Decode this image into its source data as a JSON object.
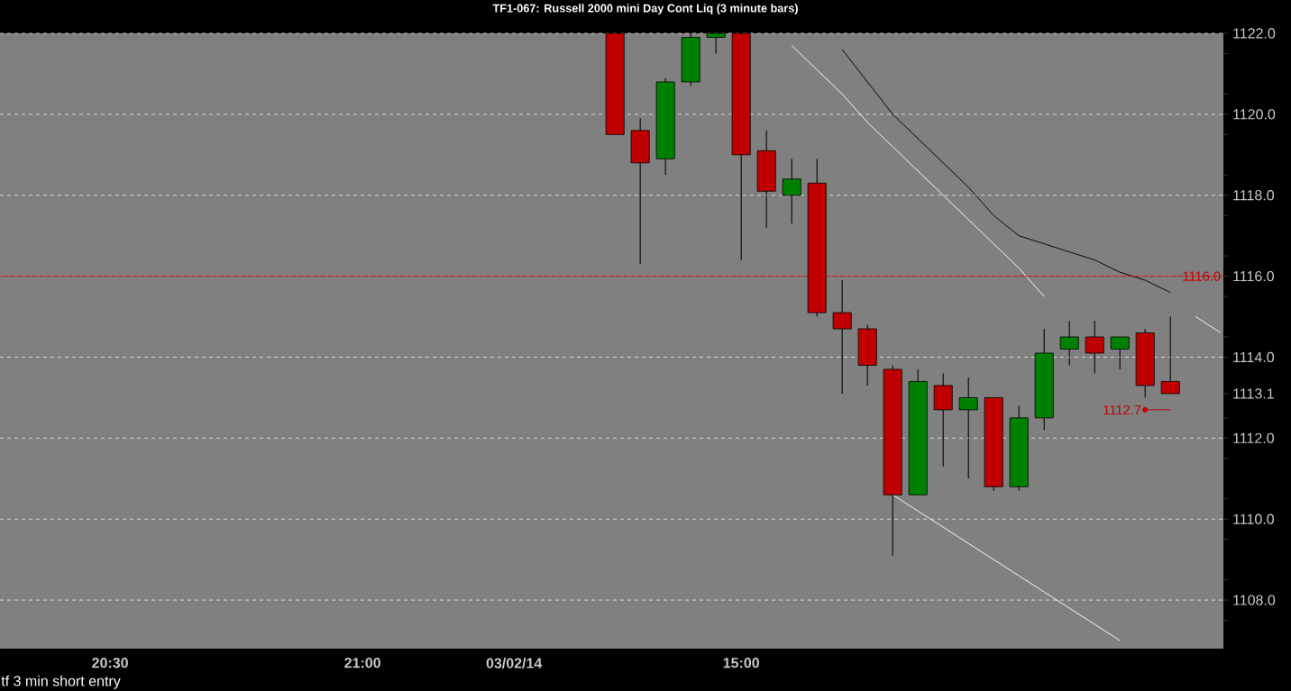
{
  "chart_data": {
    "type": "candlestick",
    "title": "TF1-067:  Russell 2000 mini Day Cont Liq  (3 minute bars)",
    "categories": [
      null,
      null,
      null,
      null,
      "20:30",
      null,
      null,
      null,
      null,
      null,
      null,
      null,
      null,
      null,
      "21:00",
      null,
      null,
      null,
      null,
      null,
      "03/02/14",
      null,
      null,
      null,
      null,
      null,
      null,
      null,
      null,
      "15:00",
      null,
      null,
      null,
      null,
      null,
      null,
      null,
      null,
      null,
      null,
      null,
      null,
      null,
      null,
      null,
      null,
      null,
      null,
      null
    ],
    "ohlc": [
      null,
      null,
      null,
      null,
      null,
      null,
      null,
      null,
      null,
      null,
      null,
      null,
      null,
      null,
      null,
      null,
      null,
      null,
      null,
      null,
      null,
      null,
      null,
      null,
      [
        1122.0,
        1122.0,
        1119.5,
        1119.5
      ],
      [
        1119.6,
        1119.9,
        1116.3,
        1118.8
      ],
      [
        1118.9,
        1120.9,
        1118.5,
        1120.8
      ],
      [
        1120.8,
        1122.0,
        1120.7,
        1121.9
      ],
      [
        1121.9,
        1122.0,
        1121.5,
        1122.0
      ],
      [
        1122.0,
        1122.0,
        1116.4,
        1119.0
      ],
      [
        1119.1,
        1119.6,
        1117.2,
        1118.1
      ],
      [
        1118.0,
        1118.9,
        1117.3,
        1118.4
      ],
      [
        1118.3,
        1118.9,
        1115.0,
        1115.1
      ],
      [
        1115.1,
        1115.9,
        1113.1,
        1114.7
      ],
      [
        1114.7,
        1114.8,
        1113.3,
        1113.8
      ],
      [
        1113.7,
        1113.8,
        1109.1,
        1110.6
      ],
      [
        1110.6,
        1113.7,
        1110.6,
        1113.4
      ],
      [
        1113.3,
        1113.6,
        1111.3,
        1112.7
      ],
      [
        1112.7,
        1113.5,
        1111.0,
        1113.0
      ],
      [
        1113.0,
        1113.0,
        1110.7,
        1110.8
      ],
      [
        1110.8,
        1112.8,
        1110.7,
        1112.5
      ],
      [
        1112.5,
        1114.7,
        1112.2,
        1114.1
      ],
      [
        1114.2,
        1114.9,
        1113.8,
        1114.5
      ],
      [
        1114.5,
        1114.9,
        1113.6,
        1114.1
      ],
      [
        1114.2,
        1114.5,
        1113.7,
        1114.5
      ],
      [
        1114.6,
        1114.7,
        1113.0,
        1113.3
      ],
      [
        1113.4,
        1115.0,
        1113.1,
        1113.1
      ],
      null,
      null
    ],
    "colors": [
      null,
      null,
      null,
      null,
      null,
      null,
      null,
      null,
      null,
      null,
      null,
      null,
      null,
      null,
      null,
      null,
      null,
      null,
      null,
      null,
      null,
      null,
      null,
      null,
      "#c00000",
      "#c00000",
      "#008000",
      "#008000",
      "#008000",
      "#c00000",
      "#c00000",
      "#008000",
      "#c00000",
      "#c00000",
      "#c00000",
      "#c00000",
      "#008000",
      "#c00000",
      "#008000",
      "#c00000",
      "#008000",
      "#008000",
      "#008000",
      "#c00000",
      "#008000",
      "#c00000",
      "#c00000",
      null,
      null
    ],
    "series": [
      {
        "type": "line",
        "color": "#000000",
        "values": [
          null,
          null,
          null,
          null,
          null,
          null,
          null,
          null,
          null,
          null,
          null,
          null,
          null,
          null,
          null,
          null,
          null,
          null,
          null,
          null,
          null,
          null,
          null,
          null,
          null,
          null,
          null,
          null,
          null,
          null,
          null,
          null,
          null,
          1121.6,
          1120.8,
          1120.0,
          1119.4,
          1118.8,
          1118.2,
          1117.5,
          1117.0,
          1116.8,
          1116.6,
          1116.4,
          1116.1,
          1115.9,
          1115.6,
          null,
          null
        ]
      },
      {
        "type": "line",
        "color": "#ffffff",
        "values": [
          null,
          null,
          null,
          null,
          null,
          null,
          null,
          null,
          null,
          null,
          null,
          null,
          null,
          null,
          null,
          null,
          null,
          null,
          null,
          null,
          null,
          null,
          null,
          null,
          null,
          null,
          null,
          null,
          null,
          null,
          null,
          1121.7,
          1121.1,
          1120.5,
          1119.8,
          1119.2,
          1118.6,
          1118.0,
          1117.4,
          1116.8,
          1116.2,
          1115.5,
          null,
          null,
          null,
          null,
          null,
          null,
          null
        ]
      },
      {
        "type": "line",
        "color": "#ffffff",
        "values": [
          null,
          null,
          null,
          null,
          null,
          null,
          null,
          null,
          null,
          null,
          null,
          null,
          null,
          null,
          null,
          null,
          null,
          null,
          null,
          null,
          null,
          null,
          null,
          null,
          null,
          null,
          null,
          null,
          null,
          null,
          null,
          null,
          null,
          null,
          null,
          1110.6,
          1110.2,
          1109.8,
          1109.4,
          1109.0,
          1108.6,
          1108.2,
          1107.8,
          1107.4,
          1107.0,
          null,
          null,
          null,
          null
        ]
      },
      {
        "type": "line",
        "color": "#ffffff",
        "values": [
          null,
          null,
          null,
          null,
          null,
          null,
          null,
          null,
          null,
          null,
          null,
          null,
          null,
          null,
          null,
          null,
          null,
          null,
          null,
          null,
          null,
          null,
          null,
          null,
          null,
          null,
          null,
          null,
          null,
          null,
          null,
          null,
          null,
          null,
          null,
          null,
          null,
          null,
          null,
          null,
          null,
          null,
          null,
          null,
          null,
          null,
          null,
          1115.0,
          1114.6
        ]
      },
      {
        "type": "line",
        "name": "1112.7",
        "color": "#c00000",
        "values": [
          null,
          null,
          null,
          null,
          null,
          null,
          null,
          null,
          null,
          null,
          null,
          null,
          null,
          null,
          null,
          null,
          null,
          null,
          null,
          null,
          null,
          null,
          null,
          null,
          null,
          null,
          null,
          null,
          null,
          null,
          null,
          null,
          null,
          null,
          null,
          null,
          null,
          null,
          null,
          null,
          null,
          null,
          null,
          null,
          null,
          1112.7,
          1112.7,
          null,
          null
        ]
      }
    ],
    "ylim": [
      1106.8,
      1122.0
    ],
    "yticks": [
      {
        "value": 1108.0,
        "label": "1108.0"
      },
      {
        "value": 1110.0,
        "label": "1110.0"
      },
      {
        "value": 1112.0,
        "label": "1112.0"
      },
      {
        "value": 1114.0,
        "label": "1114.0"
      },
      {
        "value": 1116.0,
        "label": "1116.0"
      },
      {
        "value": 1118.0,
        "label": "1118.0"
      },
      {
        "value": 1120.0,
        "label": "1120.0"
      },
      {
        "value": 1122.0,
        "label": "1122.0"
      },
      {
        "value": 1113.1,
        "label": "1113.1"
      },
      {
        "value": 1107.5,
        "label": null
      },
      {
        "value": 1108.5,
        "label": null
      },
      {
        "value": 1109.5,
        "label": null
      },
      {
        "value": 1110.5,
        "label": null
      },
      {
        "value": 1111.5,
        "label": null
      },
      {
        "value": 1112.5,
        "label": null
      },
      {
        "value": 1114.5,
        "label": null
      },
      {
        "value": 1115.5,
        "label": null
      },
      {
        "value": 1116.5,
        "label": null
      },
      {
        "value": 1117.5,
        "label": null
      },
      {
        "value": 1118.5,
        "label": null
      },
      {
        "value": 1119.5,
        "label": null
      },
      {
        "value": 1120.5,
        "label": null
      },
      {
        "value": 1121.5,
        "label": null
      }
    ],
    "grid": "y",
    "ref_lines": [
      {
        "axis": "y",
        "value": 1116.0,
        "label": "1116.0",
        "color": "#c00000"
      }
    ],
    "annotations": [
      "tf 3 min short entry"
    ]
  }
}
